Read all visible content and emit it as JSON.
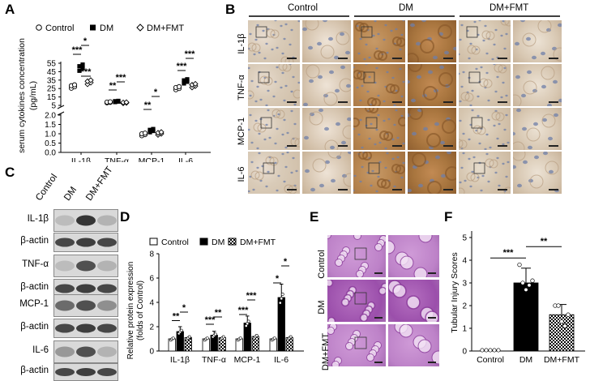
{
  "panels": {
    "A": "A",
    "B": "B",
    "C": "C",
    "D": "D",
    "E": "E",
    "F": "F"
  },
  "groups": [
    "Control",
    "DM",
    "DM+FMT"
  ],
  "panelA": {
    "chart_data": {
      "type": "scatter",
      "ylabel_line1": "serum cytokines concentration",
      "ylabel_line2": "(pg/mL)",
      "categories": [
        "IL-1β",
        "TNF-α",
        "MCP-1",
        "IL-6"
      ],
      "yticks_upper": [
        "55",
        "45",
        "35",
        "25",
        "15",
        "5"
      ],
      "yticks_lower": [
        "2.0",
        "1.5",
        "1.0",
        "0.5",
        "0.0"
      ],
      "series": [
        {
          "name": "Control",
          "values": [
            27,
            8.5,
            0.95,
            25
          ]
        },
        {
          "name": "DM",
          "values": [
            49,
            9.5,
            1.15,
            33
          ]
        },
        {
          "name": "DM+FMT",
          "values": [
            32,
            8,
            1.0,
            28
          ]
        }
      ],
      "sig": [
        {
          "cat": "IL-1β",
          "top": "*",
          "bottom": "***",
          "right": "***"
        },
        {
          "cat": "TNF-α",
          "top": "**",
          "right": "***"
        },
        {
          "cat": "MCP-1",
          "top": "**",
          "right": "*"
        },
        {
          "cat": "IL-6",
          "top": "***",
          "right": "***"
        }
      ]
    }
  },
  "panelB": {
    "rows": [
      "IL-1β",
      "TNF-α",
      "MCP-1",
      "IL-6"
    ]
  },
  "panelC": {
    "bands": [
      "IL-1β",
      "β-actin",
      "TNF-α",
      "β-actin",
      "MCP-1",
      "β-actin",
      "IL-6",
      "β-actin"
    ]
  },
  "panelD": {
    "chart_data": {
      "type": "bar",
      "ylabel_line1": "Relative protein expression",
      "ylabel_line2": "(folds of Control)",
      "categories": [
        "IL-1β",
        "TNF-α",
        "MCP-1",
        "IL-6"
      ],
      "yticks": [
        "0",
        "2",
        "4",
        "6",
        "8"
      ],
      "ylim": [
        0,
        8
      ],
      "series": [
        {
          "name": "Control",
          "values": [
            1.0,
            1.0,
            1.0,
            1.0
          ]
        },
        {
          "name": "DM",
          "values": [
            1.6,
            1.3,
            2.3,
            4.4
          ]
        },
        {
          "name": "DM+FMT",
          "values": [
            1.1,
            1.1,
            1.2,
            1.1
          ]
        }
      ],
      "sig_left": [
        "**",
        "***",
        "***",
        "*"
      ],
      "sig_right": [
        "*",
        "**",
        "***",
        "*"
      ]
    }
  },
  "panelE": {
    "rows": [
      "Control",
      "DM",
      "DM+FMT"
    ]
  },
  "panelF": {
    "chart_data": {
      "type": "bar",
      "ylabel": "Tubular Injury Scores",
      "categories": [
        "Control",
        "DM",
        "DM+FMT"
      ],
      "values": [
        0,
        3.0,
        1.6
      ],
      "yticks": [
        "0",
        "1",
        "2",
        "3",
        "4",
        "5"
      ],
      "ylim": [
        0,
        5
      ],
      "sig": [
        "***",
        "**"
      ]
    }
  }
}
